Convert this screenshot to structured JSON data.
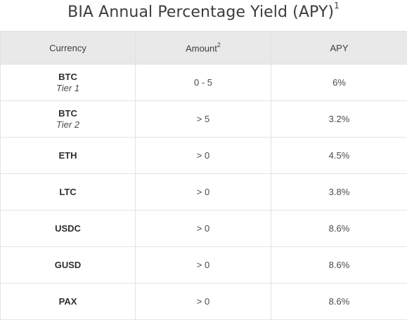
{
  "title": {
    "text": "BIA Annual Percentage Yield (APY)",
    "footnote_mark": "1"
  },
  "table": {
    "headers": {
      "currency": "Currency",
      "amount": "Amount",
      "amount_footnote": "2",
      "apy": "APY"
    },
    "rows": [
      {
        "currency": "BTC",
        "tier": "Tier 1",
        "amount": "0 - 5",
        "apy": "6%"
      },
      {
        "currency": "BTC",
        "tier": "Tier 2",
        "amount": "> 5",
        "apy": "3.2%"
      },
      {
        "currency": "ETH",
        "tier": "",
        "amount": "> 0",
        "apy": "4.5%"
      },
      {
        "currency": "LTC",
        "tier": "",
        "amount": "> 0",
        "apy": "3.8%"
      },
      {
        "currency": "USDC",
        "tier": "",
        "amount": "> 0",
        "apy": "8.6%"
      },
      {
        "currency": "GUSD",
        "tier": "",
        "amount": "> 0",
        "apy": "8.6%"
      },
      {
        "currency": "PAX",
        "tier": "",
        "amount": "> 0",
        "apy": "8.6%"
      }
    ]
  }
}
